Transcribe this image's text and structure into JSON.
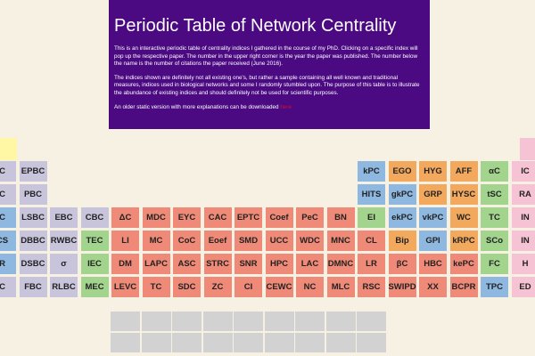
{
  "header": {
    "title": "Periodic Table of Network Centrality",
    "paragraphs": [
      "This is an interactive periodic table of centrality indices I gathered in the course of my PhD. Clicking on a specific index will pop up the respective paper. The number in the upper right corner is the year the paper was published. The number below the name is the number of citations the paper received (June 2016).",
      "The indices shown are definitely not all existing one's, but rather a sample containing all well known and traditional measures, indices used in biological networks and some I randomly stumbled upon. The purpose of this table is to illustrate the abundance of existing indices and should definitely not be used for scientific purposes."
    ],
    "download_text": "An older static version with more explanations can be downloaded ",
    "download_link": "here"
  },
  "table": {
    "rows": [
      [
        {
          "label": "C",
          "color": "#c8c4dc"
        },
        {
          "label": "EPBC",
          "color": "#c8c4dc"
        },
        null,
        null,
        null,
        null,
        null,
        null,
        null,
        null,
        null,
        null,
        {
          "label": "kPC",
          "color": "#8fb8e0"
        },
        {
          "label": "EGO",
          "color": "#f2a95e"
        },
        {
          "label": "HYG",
          "color": "#f2a95e"
        },
        {
          "label": "AFF",
          "color": "#f2a95e"
        },
        {
          "label": "αC",
          "color": "#a3d48e"
        },
        {
          "label": "IC",
          "color": "#f5c3d3"
        }
      ],
      [
        {
          "label": "C",
          "color": "#c8c4dc"
        },
        {
          "label": "PBC",
          "color": "#c8c4dc"
        },
        null,
        null,
        null,
        null,
        null,
        null,
        null,
        null,
        null,
        null,
        {
          "label": "HITS",
          "color": "#8fb8e0"
        },
        {
          "label": "gkPC",
          "color": "#8fb8e0"
        },
        {
          "label": "GRP",
          "color": "#f2a95e"
        },
        {
          "label": "HYSC",
          "color": "#f2a95e"
        },
        {
          "label": "tSC",
          "color": "#a3d48e"
        },
        {
          "label": "RA",
          "color": "#f5c3d3"
        }
      ],
      [
        {
          "label": "C",
          "color": "#8fb8e0"
        },
        {
          "label": "LSBC",
          "color": "#c8c4dc"
        },
        {
          "label": "EBC",
          "color": "#c8c4dc"
        },
        {
          "label": "CBC",
          "color": "#c8c4dc"
        },
        {
          "label": "ΔC",
          "color": "#f08a78"
        },
        {
          "label": "MDC",
          "color": "#f08a78"
        },
        {
          "label": "EYC",
          "color": "#f08a78"
        },
        {
          "label": "CAC",
          "color": "#f08a78"
        },
        {
          "label": "EPTC",
          "color": "#f08a78"
        },
        {
          "label": "Coef",
          "color": "#f08a78"
        },
        {
          "label": "PeC",
          "color": "#f08a78"
        },
        {
          "label": "BN",
          "color": "#f08a78"
        },
        {
          "label": "EI",
          "color": "#a3d48e"
        },
        {
          "label": "ekPC",
          "color": "#8fb8e0"
        },
        {
          "label": "vkPC",
          "color": "#8fb8e0"
        },
        {
          "label": "WC",
          "color": "#f2a95e"
        },
        {
          "label": "TC",
          "color": "#a3d48e"
        },
        {
          "label": "IN",
          "color": "#f5c3d3"
        }
      ],
      [
        {
          "label": "CS",
          "color": "#8fb8e0"
        },
        {
          "label": "DBBC",
          "color": "#c8c4dc"
        },
        {
          "label": "RWBC",
          "color": "#c8c4dc"
        },
        {
          "label": "TEC",
          "color": "#a3d48e"
        },
        {
          "label": "LI",
          "color": "#f08a78"
        },
        {
          "label": "MC",
          "color": "#f08a78"
        },
        {
          "label": "CoC",
          "color": "#f08a78"
        },
        {
          "label": "Eoef",
          "color": "#f08a78"
        },
        {
          "label": "SMD",
          "color": "#f08a78"
        },
        {
          "label": "UCC",
          "color": "#f08a78"
        },
        {
          "label": "WDC",
          "color": "#f08a78"
        },
        {
          "label": "MNC",
          "color": "#f08a78"
        },
        {
          "label": "CL",
          "color": "#f08a78"
        },
        {
          "label": "Bip",
          "color": "#f2a95e"
        },
        {
          "label": "GPI",
          "color": "#8fb8e0"
        },
        {
          "label": "kRPC",
          "color": "#f2a95e"
        },
        {
          "label": "SCo",
          "color": "#a3d48e"
        },
        {
          "label": "IN",
          "color": "#f5c3d3"
        }
      ],
      [
        {
          "label": "R",
          "color": "#8fb8e0"
        },
        {
          "label": "DSBC",
          "color": "#c8c4dc"
        },
        {
          "label": "σ",
          "color": "#c8c4dc"
        },
        {
          "label": "IEC",
          "color": "#a3d48e"
        },
        {
          "label": "DM",
          "color": "#f08a78"
        },
        {
          "label": "LAPC",
          "color": "#f08a78"
        },
        {
          "label": "ASC",
          "color": "#f08a78"
        },
        {
          "label": "STRC",
          "color": "#f08a78"
        },
        {
          "label": "SNR",
          "color": "#f08a78"
        },
        {
          "label": "HPC",
          "color": "#f08a78"
        },
        {
          "label": "LAC",
          "color": "#f08a78"
        },
        {
          "label": "DMNC",
          "color": "#f08a78"
        },
        {
          "label": "LR",
          "color": "#f08a78"
        },
        {
          "label": "βC",
          "color": "#f08a78"
        },
        {
          "label": "HBC",
          "color": "#f08a78"
        },
        {
          "label": "kePC",
          "color": "#f08a78"
        },
        {
          "label": "FC",
          "color": "#a3d48e"
        },
        {
          "label": "H",
          "color": "#f5c3d3"
        }
      ],
      [
        {
          "label": "C",
          "color": "#c8c4dc"
        },
        {
          "label": "FBC",
          "color": "#c8c4dc"
        },
        {
          "label": "RLBC",
          "color": "#c8c4dc"
        },
        {
          "label": "MEC",
          "color": "#a3d48e"
        },
        {
          "label": "LEVC",
          "color": "#f08a78"
        },
        {
          "label": "TC",
          "color": "#f08a78"
        },
        {
          "label": "SDC",
          "color": "#f08a78"
        },
        {
          "label": "ZC",
          "color": "#f08a78"
        },
        {
          "label": "CI",
          "color": "#f08a78"
        },
        {
          "label": "CEWC",
          "color": "#f08a78"
        },
        {
          "label": "NC",
          "color": "#f08a78"
        },
        {
          "label": "MLC",
          "color": "#f08a78"
        },
        {
          "label": "RSC",
          "color": "#f08a78"
        },
        {
          "label": "SWIPD",
          "color": "#f08a78"
        },
        {
          "label": "XX",
          "color": "#f08a78"
        },
        {
          "label": "BCPR",
          "color": "#f08a78"
        },
        {
          "label": "TPC",
          "color": "#8fb8e0"
        },
        {
          "label": "ED",
          "color": "#f5c3d3"
        }
      ]
    ]
  }
}
